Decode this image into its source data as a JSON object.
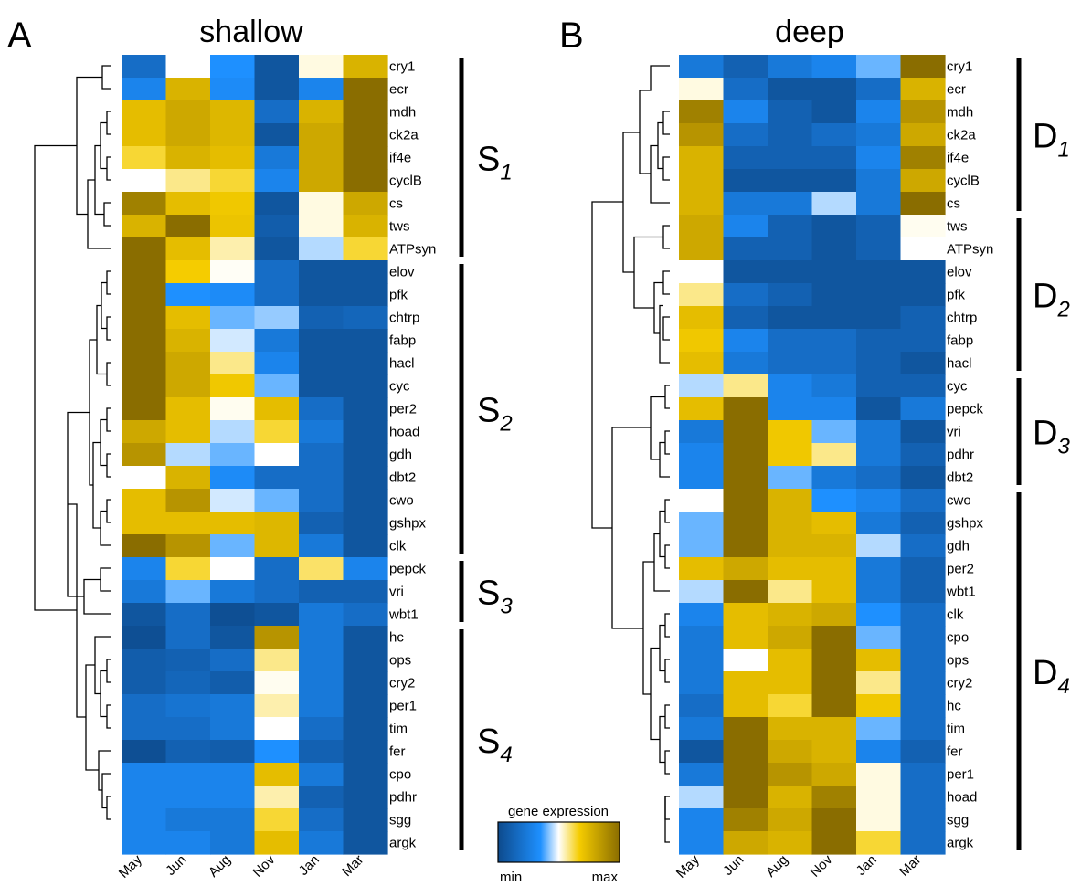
{
  "panels": [
    {
      "letter": "A",
      "title": "shallow",
      "months": [
        "May",
        "Jun",
        "Aug",
        "Nov",
        "Jan",
        "Mar"
      ],
      "genes": [
        "cry1",
        "ecr",
        "mdh",
        "ck2a",
        "if4e",
        "cyclB",
        "cs",
        "tws",
        "ATPsyn",
        "elov",
        "pfk",
        "chtrp",
        "fabp",
        "hacl",
        "cyc",
        "per2",
        "hoad",
        "gdh",
        "dbt2",
        "cwo",
        "gshpx",
        "clk",
        "pepck",
        "vri",
        "wbt1",
        "hc",
        "ops",
        "cry2",
        "per1",
        "tim",
        "fer",
        "cpo",
        "pdhr",
        "sgg",
        "argk"
      ],
      "clusters": [
        {
          "label": "S",
          "sub": "1",
          "start_row": 0,
          "end_row": 8
        },
        {
          "label": "S",
          "sub": "2",
          "start_row": 9,
          "end_row": 21
        },
        {
          "label": "S",
          "sub": "3",
          "start_row": 22,
          "end_row": 24
        },
        {
          "label": "S",
          "sub": "4",
          "start_row": 25,
          "end_row": 34
        }
      ]
    },
    {
      "letter": "B",
      "title": "deep",
      "months": [
        "May",
        "Jun",
        "Aug",
        "Nov",
        "Jan",
        "Mar"
      ],
      "genes": [
        "cry1",
        "ecr",
        "mdh",
        "ck2a",
        "if4e",
        "cyclB",
        "cs",
        "tws",
        "ATPsyn",
        "elov",
        "pfk",
        "chtrp",
        "fabp",
        "hacl",
        "cyc",
        "pepck",
        "vri",
        "pdhr",
        "dbt2",
        "cwo",
        "gshpx",
        "gdh",
        "per2",
        "wbt1",
        "clk",
        "cpo",
        "ops",
        "cry2",
        "hc",
        "tim",
        "fer",
        "per1",
        "hoad",
        "sgg",
        "argk"
      ],
      "clusters": [
        {
          "label": "D",
          "sub": "1",
          "start_row": 0,
          "end_row": 6
        },
        {
          "label": "D",
          "sub": "2",
          "start_row": 7,
          "end_row": 13
        },
        {
          "label": "D",
          "sub": "3",
          "start_row": 14,
          "end_row": 18
        },
        {
          "label": "D",
          "sub": "4",
          "start_row": 19,
          "end_row": 34
        }
      ]
    }
  ],
  "legend": {
    "title": "gene expression",
    "min_label": "min",
    "max_label": "max"
  },
  "colors": {
    "min": "#0d4a8c",
    "mid_blue": "#1e90ff",
    "mid": "#ffffff",
    "mid_yellow": "#f5cc00",
    "max": "#8a6d00"
  },
  "chart_data": [
    {
      "type": "heatmap",
      "title": "shallow",
      "x": [
        "May",
        "Jun",
        "Aug",
        "Nov",
        "Jan",
        "Mar"
      ],
      "y": [
        "cry1",
        "ecr",
        "mdh",
        "ck2a",
        "if4e",
        "cyclB",
        "cs",
        "tws",
        "ATPsyn",
        "elov",
        "pfk",
        "chtrp",
        "fabp",
        "hacl",
        "cyc",
        "per2",
        "hoad",
        "gdh",
        "dbt2",
        "cwo",
        "gshpx",
        "clk",
        "pepck",
        "vri",
        "wbt1",
        "hc",
        "ops",
        "cry2",
        "per1",
        "tim",
        "fer",
        "cpo",
        "pdhr",
        "sgg",
        "argk"
      ],
      "scale": [
        0,
        1
      ],
      "values": [
        [
          0.15,
          0.45,
          0.3,
          0.05,
          0.55,
          0.8
        ],
        [
          0.25,
          0.8,
          0.28,
          0.05,
          0.25,
          1.0
        ],
        [
          0.75,
          0.85,
          0.78,
          0.15,
          0.8,
          1.0
        ],
        [
          0.75,
          0.85,
          0.78,
          0.05,
          0.85,
          1.0
        ],
        [
          0.65,
          0.8,
          0.75,
          0.2,
          0.85,
          1.0
        ],
        [
          0.45,
          0.6,
          0.65,
          0.25,
          0.85,
          1.0
        ],
        [
          0.95,
          0.75,
          0.7,
          0.05,
          0.55,
          0.85
        ],
        [
          0.8,
          1.0,
          0.72,
          0.08,
          0.55,
          0.8
        ],
        [
          1.0,
          0.75,
          0.58,
          0.05,
          0.4,
          0.65
        ],
        [
          1.0,
          0.68,
          0.48,
          0.15,
          0.05,
          0.05
        ],
        [
          1.0,
          0.3,
          0.28,
          0.15,
          0.05,
          0.05
        ],
        [
          1.0,
          0.75,
          0.35,
          0.38,
          0.1,
          0.12
        ],
        [
          1.0,
          0.8,
          0.42,
          0.2,
          0.05,
          0.05
        ],
        [
          1.0,
          0.85,
          0.6,
          0.25,
          0.05,
          0.05
        ],
        [
          1.0,
          0.85,
          0.7,
          0.35,
          0.05,
          0.05
        ],
        [
          1.0,
          0.75,
          0.5,
          0.75,
          0.15,
          0.05
        ],
        [
          0.85,
          0.75,
          0.4,
          0.65,
          0.2,
          0.05
        ],
        [
          0.9,
          0.4,
          0.35,
          0.45,
          0.15,
          0.05
        ],
        [
          0.45,
          0.8,
          0.28,
          0.15,
          0.15,
          0.05
        ],
        [
          0.75,
          0.9,
          0.42,
          0.35,
          0.15,
          0.05
        ],
        [
          0.75,
          0.75,
          0.75,
          0.78,
          0.1,
          0.05
        ],
        [
          1.0,
          0.9,
          0.35,
          0.78,
          0.2,
          0.05
        ],
        [
          0.25,
          0.65,
          0.45,
          0.15,
          0.62,
          0.25
        ],
        [
          0.2,
          0.35,
          0.2,
          0.15,
          0.1,
          0.1
        ],
        [
          0.05,
          0.15,
          0.02,
          0.05,
          0.2,
          0.15
        ],
        [
          0.02,
          0.15,
          0.05,
          0.9,
          0.2,
          0.05
        ],
        [
          0.08,
          0.1,
          0.15,
          0.6,
          0.2,
          0.05
        ],
        [
          0.08,
          0.12,
          0.08,
          0.5,
          0.2,
          0.05
        ],
        [
          0.15,
          0.18,
          0.2,
          0.58,
          0.2,
          0.05
        ],
        [
          0.15,
          0.15,
          0.2,
          0.45,
          0.15,
          0.05
        ],
        [
          0.02,
          0.1,
          0.08,
          0.3,
          0.1,
          0.05
        ],
        [
          0.25,
          0.25,
          0.25,
          0.75,
          0.2,
          0.05
        ],
        [
          0.25,
          0.25,
          0.25,
          0.58,
          0.1,
          0.05
        ],
        [
          0.25,
          0.2,
          0.2,
          0.65,
          0.15,
          0.05
        ],
        [
          0.25,
          0.25,
          0.2,
          0.75,
          0.2,
          0.05
        ]
      ]
    },
    {
      "type": "heatmap",
      "title": "deep",
      "x": [
        "May",
        "Jun",
        "Aug",
        "Nov",
        "Jan",
        "Mar"
      ],
      "y": [
        "cry1",
        "ecr",
        "mdh",
        "ck2a",
        "if4e",
        "cyclB",
        "cs",
        "tws",
        "ATPsyn",
        "elov",
        "pfk",
        "chtrp",
        "fabp",
        "hacl",
        "cyc",
        "pepck",
        "vri",
        "pdhr",
        "dbt2",
        "cwo",
        "gshpx",
        "gdh",
        "per2",
        "wbt1",
        "clk",
        "cpo",
        "ops",
        "cry2",
        "hc",
        "tim",
        "fer",
        "per1",
        "hoad",
        "sgg",
        "argk"
      ],
      "scale": [
        0,
        1
      ],
      "values": [
        [
          0.2,
          0.1,
          0.2,
          0.25,
          0.35,
          1.0
        ],
        [
          0.55,
          0.15,
          0.05,
          0.05,
          0.15,
          0.8
        ],
        [
          0.95,
          0.25,
          0.1,
          0.05,
          0.25,
          0.9
        ],
        [
          0.9,
          0.15,
          0.1,
          0.15,
          0.2,
          0.85
        ],
        [
          0.8,
          0.1,
          0.1,
          0.1,
          0.25,
          0.95
        ],
        [
          0.8,
          0.05,
          0.05,
          0.05,
          0.2,
          0.85
        ],
        [
          0.8,
          0.2,
          0.2,
          0.4,
          0.2,
          1.0
        ],
        [
          0.85,
          0.25,
          0.1,
          0.05,
          0.1,
          0.5
        ],
        [
          0.85,
          0.1,
          0.1,
          0.05,
          0.1,
          0.45
        ],
        [
          0.45,
          0.05,
          0.05,
          0.05,
          0.05,
          0.05
        ],
        [
          0.6,
          0.15,
          0.1,
          0.05,
          0.05,
          0.05
        ],
        [
          0.75,
          0.1,
          0.05,
          0.05,
          0.05,
          0.1
        ],
        [
          0.7,
          0.25,
          0.15,
          0.15,
          0.1,
          0.1
        ],
        [
          0.75,
          0.2,
          0.15,
          0.15,
          0.1,
          0.05
        ],
        [
          0.4,
          0.6,
          0.25,
          0.2,
          0.1,
          0.1
        ],
        [
          0.75,
          1.0,
          0.25,
          0.25,
          0.05,
          0.2
        ],
        [
          0.2,
          1.0,
          0.7,
          0.35,
          0.2,
          0.05
        ],
        [
          0.25,
          1.0,
          0.7,
          0.6,
          0.2,
          0.1
        ],
        [
          0.25,
          1.0,
          0.35,
          0.2,
          0.15,
          0.05
        ],
        [
          0.45,
          1.0,
          0.8,
          0.3,
          0.25,
          0.15
        ],
        [
          0.35,
          1.0,
          0.8,
          0.75,
          0.2,
          0.1
        ],
        [
          0.35,
          1.0,
          0.8,
          0.8,
          0.4,
          0.15
        ],
        [
          0.75,
          0.85,
          0.75,
          0.75,
          0.2,
          0.1
        ],
        [
          0.4,
          1.0,
          0.6,
          0.75,
          0.2,
          0.1
        ],
        [
          0.25,
          0.75,
          0.8,
          0.85,
          0.3,
          0.15
        ],
        [
          0.2,
          0.75,
          0.85,
          1.0,
          0.35,
          0.15
        ],
        [
          0.2,
          0.45,
          0.75,
          1.0,
          0.75,
          0.15
        ],
        [
          0.2,
          0.75,
          0.75,
          1.0,
          0.6,
          0.15
        ],
        [
          0.15,
          0.75,
          0.65,
          1.0,
          0.7,
          0.15
        ],
        [
          0.2,
          1.0,
          0.8,
          0.8,
          0.35,
          0.15
        ],
        [
          0.05,
          1.0,
          0.85,
          0.8,
          0.25,
          0.1
        ],
        [
          0.2,
          1.0,
          0.9,
          0.85,
          0.55,
          0.15
        ],
        [
          0.4,
          1.0,
          0.8,
          0.95,
          0.55,
          0.15
        ],
        [
          0.25,
          0.95,
          0.85,
          1.0,
          0.55,
          0.15
        ],
        [
          0.25,
          0.85,
          0.8,
          1.0,
          0.65,
          0.15
        ]
      ]
    }
  ]
}
